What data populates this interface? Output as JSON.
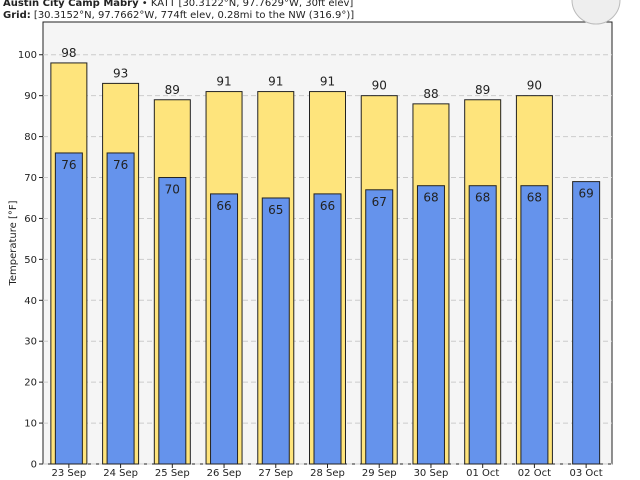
{
  "chart_data": {
    "type": "bar",
    "title": "Austin City Camp Mabry",
    "station": " • KATT [30.3122°N, 97.7629°W, 30ft elev]",
    "grid_label": "Grid:",
    "grid_info": " [30.3152°N, 97.7662°W, 774ft elev, 0.28mi to the NW (316.9°)]",
    "y_label": "Temperature [°F]",
    "categories": [
      "23 Sep",
      "24 Sep",
      "25 Sep",
      "26 Sep",
      "27 Sep",
      "28 Sep",
      "29 Sep",
      "30 Sep",
      "01 Oct",
      "02 Oct",
      "03 Oct"
    ],
    "series": [
      {
        "color": "#fee47c",
        "values": [
          98,
          93,
          89,
          91,
          91,
          91,
          90,
          88,
          89,
          90,
          null
        ]
      },
      {
        "color": "#6593ec",
        "values": [
          76,
          76,
          70,
          66,
          65,
          66,
          67,
          68,
          68,
          68,
          69
        ]
      }
    ],
    "ylim": [
      0,
      108
    ],
    "yticks": [
      0,
      10,
      20,
      30,
      40,
      50,
      60,
      70,
      80,
      90,
      100
    ],
    "grid": true
  }
}
